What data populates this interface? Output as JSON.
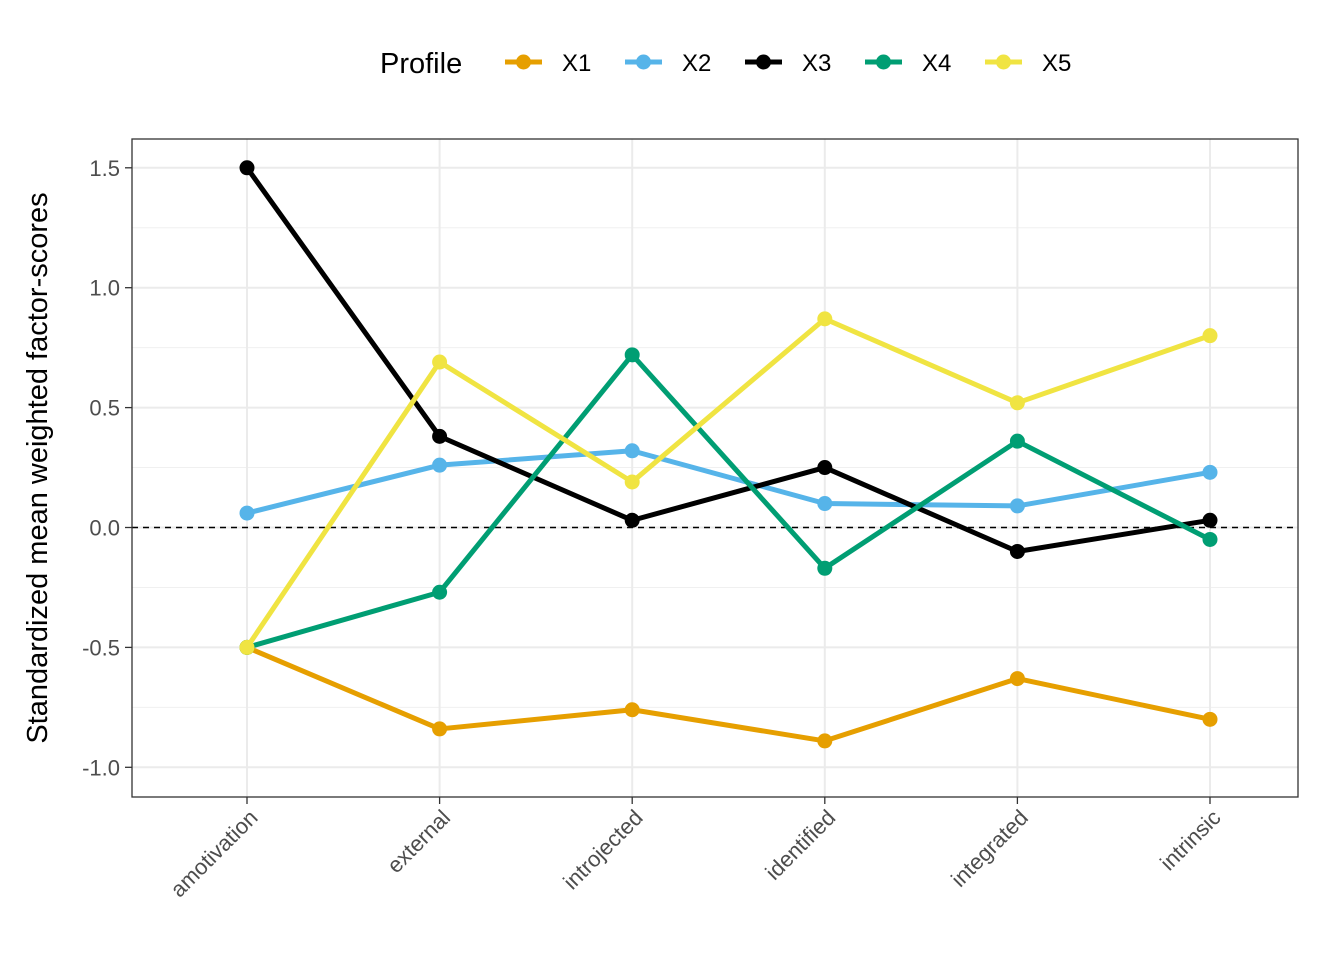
{
  "chart_data": {
    "type": "line",
    "title": "",
    "xlabel": "",
    "ylabel": "Standardized mean weighted factor-scores",
    "categories": [
      "amotivation",
      "external",
      "introjected",
      "identified",
      "integrated",
      "intrinsic"
    ],
    "ylim": [
      -1.12,
      1.62
    ],
    "yticks": [
      -1.0,
      -0.5,
      0.0,
      0.5,
      1.0,
      1.5
    ],
    "ytick_labels": [
      "-1.0",
      "-0.5",
      "0.0",
      "0.5",
      "1.0",
      "1.5"
    ],
    "grid": true,
    "reference_line": 0.0,
    "legend": {
      "title": "Profile",
      "position": "top"
    },
    "series": [
      {
        "name": "X1",
        "color": "#E69F00",
        "values": [
          -0.5,
          -0.84,
          -0.76,
          -0.89,
          -0.63,
          -0.8
        ]
      },
      {
        "name": "X2",
        "color": "#56B4E9",
        "values": [
          0.06,
          0.26,
          0.32,
          0.1,
          0.09,
          0.23
        ]
      },
      {
        "name": "X3",
        "color": "#000000",
        "values": [
          1.5,
          0.38,
          0.03,
          0.25,
          -0.1,
          0.03
        ]
      },
      {
        "name": "X4",
        "color": "#009E73",
        "values": [
          -0.5,
          -0.27,
          0.72,
          -0.17,
          0.36,
          -0.05
        ]
      },
      {
        "name": "X5",
        "color": "#F0E442",
        "values": [
          -0.5,
          0.69,
          0.19,
          0.87,
          0.52,
          0.8
        ]
      }
    ]
  }
}
